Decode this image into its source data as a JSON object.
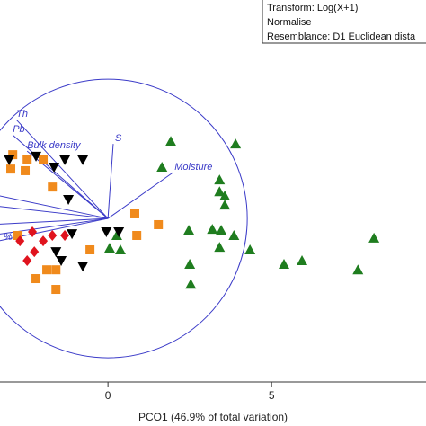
{
  "chart_data": {
    "type": "scatter",
    "xlabel": "PCO1 (46.9% of total variation)",
    "xlim": [
      -3.3,
      9.72
    ],
    "xticks": [
      0,
      5
    ],
    "ylim": [
      -5,
      6.68
    ],
    "notes": [
      "Transform: Log(X+1)",
      "Normalise",
      "Resemblance: D1 Euclidean dista"
    ],
    "series": [
      {
        "marker": "triangle",
        "color": "#1f7d1f",
        "x": [
          1.92,
          3.9,
          3.41,
          3.41,
          3.57,
          3.57,
          3.19,
          2.47,
          3.46,
          3.85,
          4.34,
          3.41,
          0.27,
          0.38,
          0.05,
          2.5,
          2.53,
          5.38,
          5.93,
          7.64,
          8.13,
          1.65
        ],
        "values": [
          2.36,
          2.28,
          1.18,
          0.82,
          0.69,
          0.41,
          -0.33,
          -0.36,
          -0.36,
          -0.52,
          -0.96,
          -0.88,
          -0.52,
          -0.96,
          -0.91,
          -1.4,
          -2.01,
          -1.4,
          -1.29,
          -1.57,
          -0.6,
          1.57
        ]
      },
      {
        "marker": "square",
        "color": "#f08a1c",
        "x": [
          -2.91,
          -2.47,
          -2.97,
          -2.53,
          -1.98,
          -1.7,
          0.82,
          1.54,
          0.88,
          -0.55,
          -1.87,
          -2.2,
          -1.59,
          -1.59,
          -2.75
        ],
        "values": [
          1.95,
          1.79,
          1.51,
          1.46,
          1.79,
          0.96,
          0.14,
          -0.19,
          -0.52,
          -0.96,
          -1.57,
          -1.84,
          -2.17,
          -1.57,
          -0.52
        ]
      },
      {
        "marker": "invtriangle",
        "color": "#000000",
        "x": [
          -3.02,
          -2.2,
          -1.32,
          -0.77,
          -1.65,
          -1.21,
          -1.1,
          -0.05,
          0.33,
          -0.77,
          -1.43,
          -1.59
        ],
        "values": [
          1.79,
          1.9,
          1.79,
          1.79,
          1.57,
          0.58,
          -0.47,
          -0.41,
          -0.41,
          -1.46,
          -1.29,
          -1.02
        ]
      },
      {
        "marker": "diamond",
        "color": "#e0141e",
        "x": [
          -2.31,
          -2.69,
          -1.98,
          -2.25,
          -1.7,
          -2.47,
          -1.32
        ],
        "values": [
          -0.41,
          -0.69,
          -0.69,
          -1.02,
          -0.52,
          -1.29,
          -0.52
        ]
      }
    ],
    "vector_color": "#3b3bc8",
    "vectors": [
      {
        "label": "Th",
        "x": -2.8,
        "y": 3.02
      },
      {
        "label": "Pb",
        "x": -2.91,
        "y": 2.55
      },
      {
        "label": "Bulk density",
        "x": -2.47,
        "y": 2.06
      },
      {
        "label": "S",
        "x": 0.16,
        "y": 2.28
      },
      {
        "label": "Moisture",
        "x": 1.98,
        "y": 1.4
      },
      {
        "label": null,
        "x": -3.6,
        "y": 0.75
      },
      {
        "label": null,
        "x": -3.6,
        "y": 0.4
      },
      {
        "label": null,
        "x": -3.6,
        "y": -0.19
      },
      {
        "label": null,
        "x": -3.6,
        "y": -0.52
      },
      {
        "label": "%",
        "x": -3.6,
        "y": -0.74
      }
    ]
  }
}
